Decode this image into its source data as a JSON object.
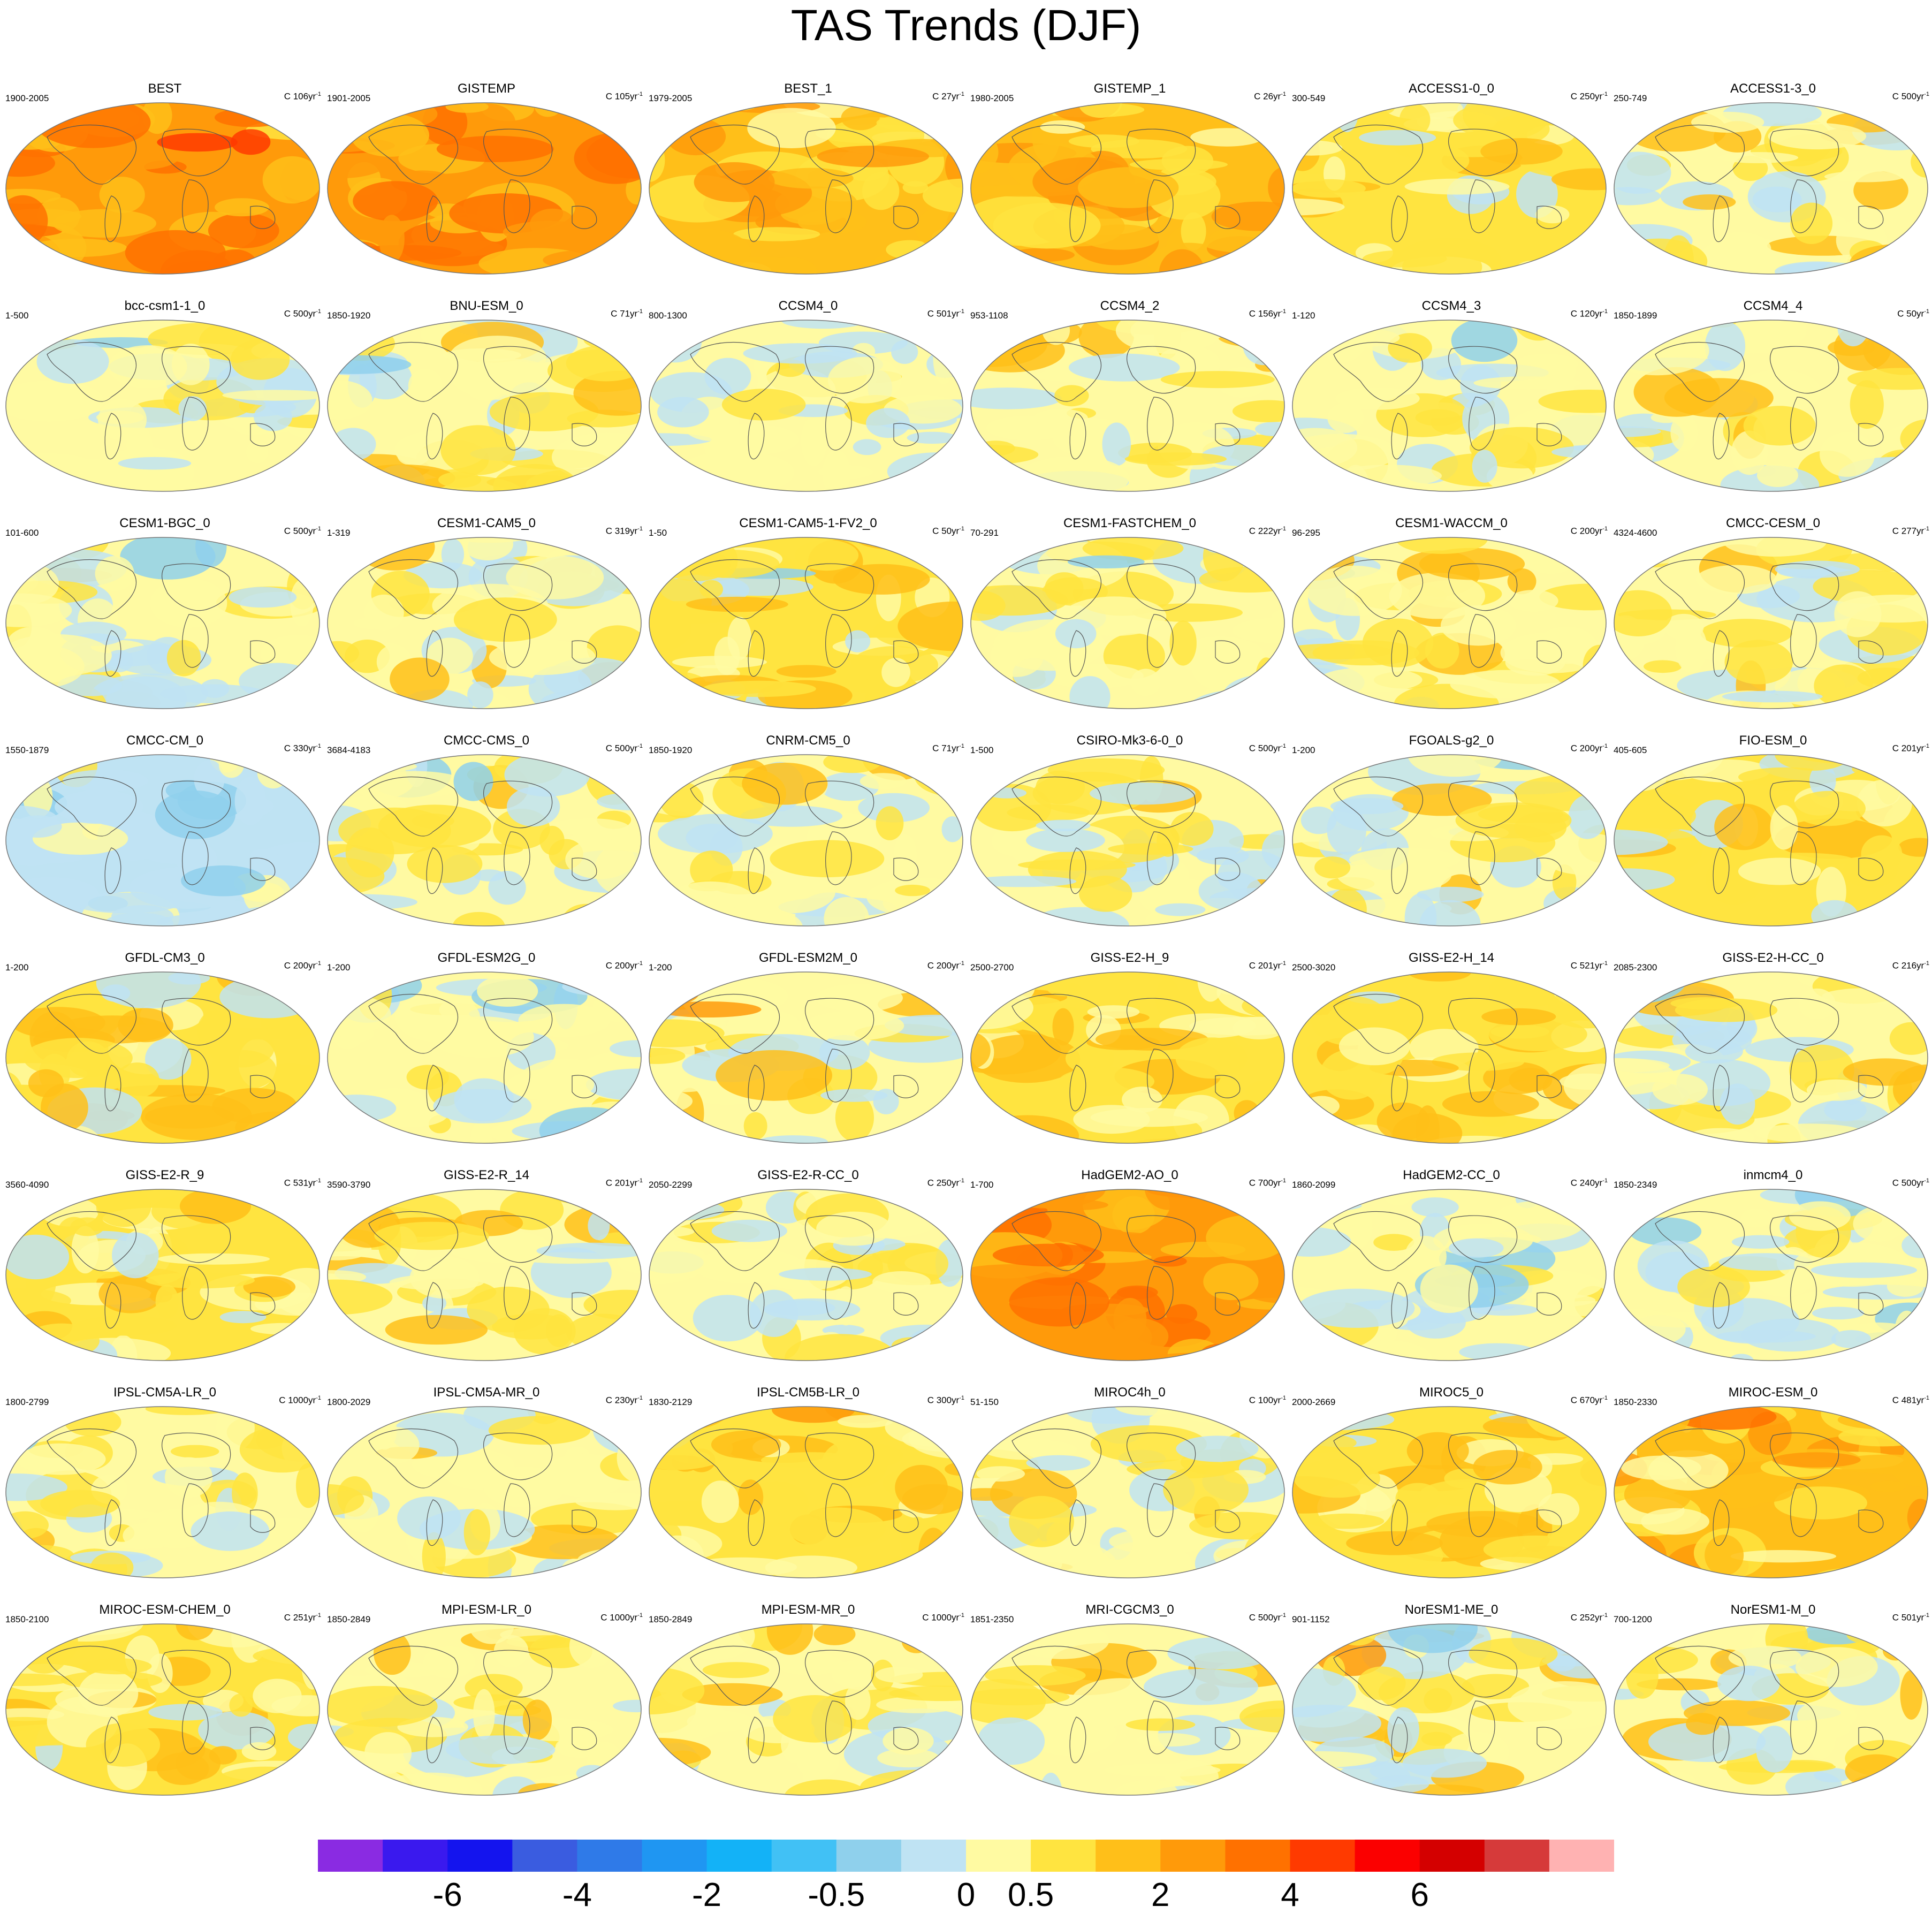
{
  "title": "TAS Trends (DJF)",
  "colors": [
    "#8a2be2",
    "#3a19ee",
    "#1414ee",
    "#3a5ce0",
    "#2f7ae8",
    "#1f96f2",
    "#13b2f7",
    "#41c1f5",
    "#8fd0ec",
    "#bfe3f3",
    "#fffaa2",
    "#ffe440",
    "#ffbf19",
    "#ff9a0a",
    "#ff7100",
    "#ff3a00",
    "#fb0000",
    "#d40000",
    "#d63a3a",
    "#ffb2b2"
  ],
  "chart_data": {
    "type": "heatmap",
    "title": "TAS Trends (DJF)",
    "colorbar": {
      "labels": [
        "-6",
        "-4",
        "-2",
        "-0.5",
        "0",
        "0.5",
        "2",
        "4",
        "6"
      ],
      "label_boundaries": [
        2,
        4,
        6,
        8,
        10,
        11,
        13,
        15,
        17
      ],
      "n_bins": 20
    },
    "panels": [
      {
        "name": "BEST",
        "period": "1900-2005",
        "factor": "C 106yr",
        "dominant": "warm",
        "mean_bin": 12.8
      },
      {
        "name": "GISTEMP",
        "period": "1901-2005",
        "factor": "C 105yr",
        "dominant": "warm",
        "mean_bin": 13.0
      },
      {
        "name": "BEST_1",
        "period": "1979-2005",
        "factor": "C 27yr",
        "dominant": "warm",
        "mean_bin": 11.9
      },
      {
        "name": "GISTEMP_1",
        "period": "1980-2005",
        "factor": "C 26yr",
        "dominant": "warm",
        "mean_bin": 11.9
      },
      {
        "name": "ACCESS1-0_0",
        "period": "300-549",
        "factor": "C 250yr",
        "dominant": "mixed",
        "mean_bin": 10.6
      },
      {
        "name": "ACCESS1-3_0",
        "period": "250-749",
        "factor": "C 500yr",
        "dominant": "mixed",
        "mean_bin": 10.3
      },
      {
        "name": "bcc-csm1-1_0",
        "period": "1-500",
        "factor": "C 500yr",
        "dominant": "cool",
        "mean_bin": 9.9
      },
      {
        "name": "BNU-ESM_0",
        "period": "1850-1920",
        "factor": "C 71yr",
        "dominant": "mixed",
        "mean_bin": 10.1
      },
      {
        "name": "CCSM4_0",
        "period": "800-1300",
        "factor": "C 501yr",
        "dominant": "cool",
        "mean_bin": 9.9
      },
      {
        "name": "CCSM4_2",
        "period": "953-1108",
        "factor": "C 156yr",
        "dominant": "mixed",
        "mean_bin": 10.0
      },
      {
        "name": "CCSM4_3",
        "period": "1-120",
        "factor": "C 120yr",
        "dominant": "cool",
        "mean_bin": 9.9
      },
      {
        "name": "CCSM4_4",
        "period": "1850-1899",
        "factor": "C 50yr",
        "dominant": "mixed",
        "mean_bin": 10.4
      },
      {
        "name": "CESM1-BGC_0",
        "period": "101-600",
        "factor": "C 500yr",
        "dominant": "mixed",
        "mean_bin": 10.0
      },
      {
        "name": "CESM1-CAM5_0",
        "period": "1-319",
        "factor": "C 319yr",
        "dominant": "mixed",
        "mean_bin": 10.3
      },
      {
        "name": "CESM1-CAM5-1-FV2_0",
        "period": "1-50",
        "factor": "C 50yr",
        "dominant": "mixed",
        "mean_bin": 10.6
      },
      {
        "name": "CESM1-FASTCHEM_0",
        "period": "70-291",
        "factor": "C 222yr",
        "dominant": "mixed",
        "mean_bin": 10.2
      },
      {
        "name": "CESM1-WACCM_0",
        "period": "96-295",
        "factor": "C 200yr",
        "dominant": "mixed",
        "mean_bin": 10.2
      },
      {
        "name": "CMCC-CESM_0",
        "period": "4324-4600",
        "factor": "C 277yr",
        "dominant": "mixed",
        "mean_bin": 10.2
      },
      {
        "name": "CMCC-CM_0",
        "period": "1550-1879",
        "factor": "C 330yr",
        "dominant": "cool",
        "mean_bin": 9.3
      },
      {
        "name": "CMCC-CMS_0",
        "period": "3684-4183",
        "factor": "C 500yr",
        "dominant": "mixed",
        "mean_bin": 10.2
      },
      {
        "name": "CNRM-CM5_0",
        "period": "1850-1920",
        "factor": "C 71yr",
        "dominant": "mixed",
        "mean_bin": 9.9
      },
      {
        "name": "CSIRO-Mk3-6-0_0",
        "period": "1-500",
        "factor": "C 500yr",
        "dominant": "mixed",
        "mean_bin": 10.4
      },
      {
        "name": "FGOALS-g2_0",
        "period": "1-200",
        "factor": "C 200yr",
        "dominant": "mixed",
        "mean_bin": 10.2
      },
      {
        "name": "FIO-ESM_0",
        "period": "405-605",
        "factor": "C 201yr",
        "dominant": "mixed",
        "mean_bin": 10.6
      },
      {
        "name": "GFDL-CM3_0",
        "period": "1-200",
        "factor": "C 200yr",
        "dominant": "mixed",
        "mean_bin": 10.6
      },
      {
        "name": "GFDL-ESM2G_0",
        "period": "1-200",
        "factor": "C 200yr",
        "dominant": "cool",
        "mean_bin": 9.5
      },
      {
        "name": "GFDL-ESM2M_0",
        "period": "1-200",
        "factor": "C 200yr",
        "dominant": "mixed",
        "mean_bin": 10.3
      },
      {
        "name": "GISS-E2-H_9",
        "period": "2500-2700",
        "factor": "C 201yr",
        "dominant": "warm",
        "mean_bin": 11.0
      },
      {
        "name": "GISS-E2-H_14",
        "period": "2500-3020",
        "factor": "C 521yr",
        "dominant": "warm",
        "mean_bin": 10.9
      },
      {
        "name": "GISS-E2-H-CC_0",
        "period": "2085-2300",
        "factor": "C 216yr",
        "dominant": "mixed",
        "mean_bin": 10.2
      },
      {
        "name": "GISS-E2-R_9",
        "period": "3560-4090",
        "factor": "C 531yr",
        "dominant": "mixed",
        "mean_bin": 10.5
      },
      {
        "name": "GISS-E2-R_14",
        "period": "3590-3790",
        "factor": "C 201yr",
        "dominant": "mixed",
        "mean_bin": 10.4
      },
      {
        "name": "GISS-E2-R-CC_0",
        "period": "2050-2299",
        "factor": "C 250yr",
        "dominant": "cool",
        "mean_bin": 9.9
      },
      {
        "name": "HadGEM2-AO_0",
        "period": "1-700",
        "factor": "C 700yr",
        "dominant": "warm",
        "mean_bin": 13.2
      },
      {
        "name": "HadGEM2-CC_0",
        "period": "1860-2099",
        "factor": "C 240yr",
        "dominant": "cool",
        "mean_bin": 9.5
      },
      {
        "name": "inmcm4_0",
        "period": "1850-2349",
        "factor": "C 500yr",
        "dominant": "cool",
        "mean_bin": 9.5
      },
      {
        "name": "IPSL-CM5A-LR_0",
        "period": "1800-2799",
        "factor": "C 1000yr",
        "dominant": "mixed",
        "mean_bin": 10.2
      },
      {
        "name": "IPSL-CM5A-MR_0",
        "period": "1800-2029",
        "factor": "C 230yr",
        "dominant": "mixed",
        "mean_bin": 10.3
      },
      {
        "name": "IPSL-CM5B-LR_0",
        "period": "1830-2129",
        "factor": "C 300yr",
        "dominant": "warm",
        "mean_bin": 11.0
      },
      {
        "name": "MIROC4h_0",
        "period": "51-150",
        "factor": "C 100yr",
        "dominant": "mixed",
        "mean_bin": 10.2
      },
      {
        "name": "MIROC5_0",
        "period": "2000-2669",
        "factor": "C 670yr",
        "dominant": "warm",
        "mean_bin": 11.0
      },
      {
        "name": "MIROC-ESM_0",
        "period": "1850-2330",
        "factor": "C 481yr",
        "dominant": "warm",
        "mean_bin": 11.6
      },
      {
        "name": "MIROC-ESM-CHEM_0",
        "period": "1850-2100",
        "factor": "C 251yr",
        "dominant": "mixed",
        "mean_bin": 10.7
      },
      {
        "name": "MPI-ESM-LR_0",
        "period": "1850-2849",
        "factor": "C 1000yr",
        "dominant": "mixed",
        "mean_bin": 10.3
      },
      {
        "name": "MPI-ESM-MR_0",
        "period": "1850-2849",
        "factor": "C 1000yr",
        "dominant": "mixed",
        "mean_bin": 10.4
      },
      {
        "name": "MRI-CGCM3_0",
        "period": "1851-2350",
        "factor": "C 500yr",
        "dominant": "mixed",
        "mean_bin": 10.4
      },
      {
        "name": "NorESM1-ME_0",
        "period": "901-1152",
        "factor": "C 252yr",
        "dominant": "mixed",
        "mean_bin": 10.4
      },
      {
        "name": "NorESM1-M_0",
        "period": "700-1200",
        "factor": "C 501yr",
        "dominant": "mixed",
        "mean_bin": 10.4
      }
    ]
  }
}
